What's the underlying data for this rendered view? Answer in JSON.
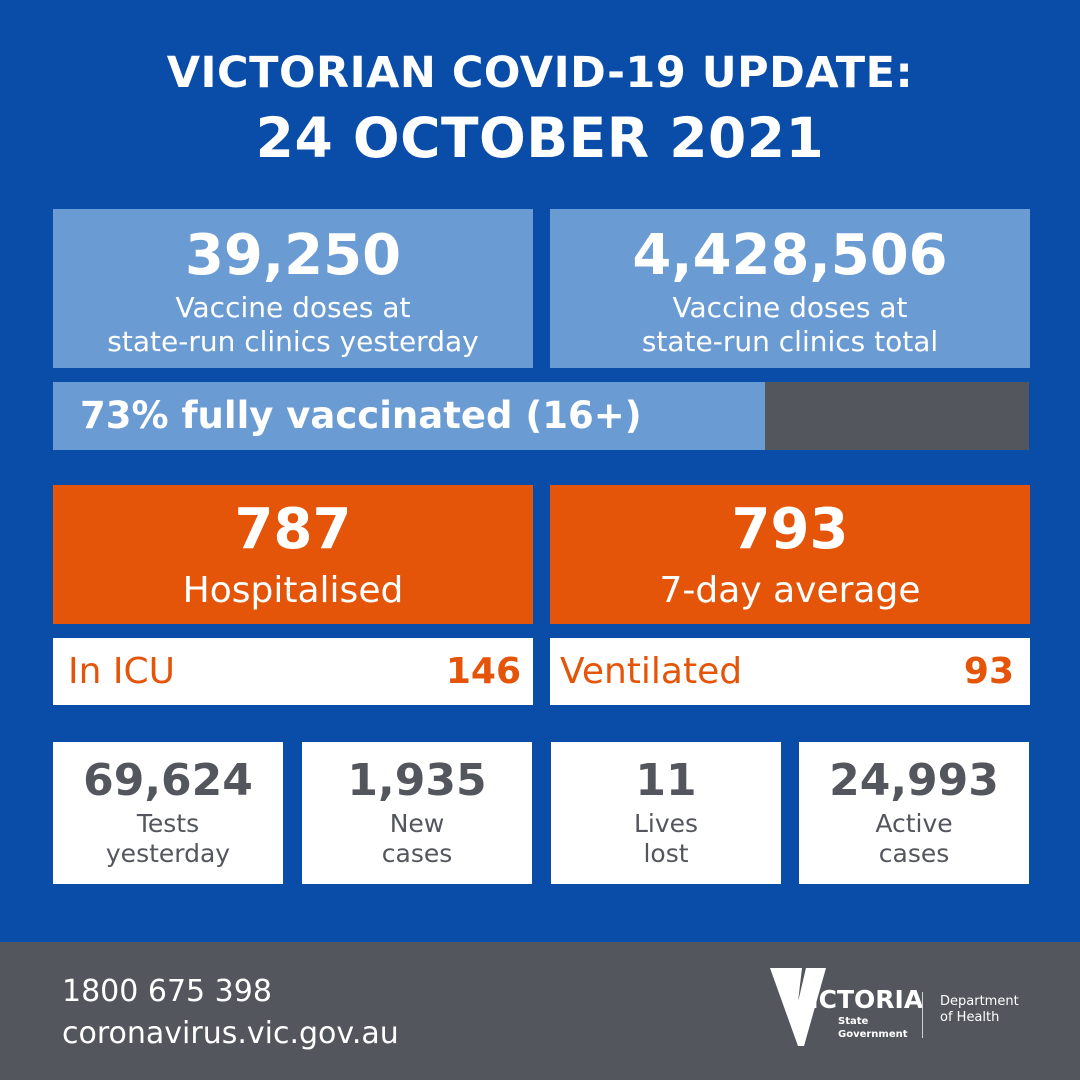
{
  "header": {
    "title": "VICTORIAN COVID-19 UPDATE:",
    "date": "24 OCTOBER 2021"
  },
  "vaccine": {
    "yesterday": {
      "value": "39,250",
      "label_line1": "Vaccine doses at",
      "label_line2": "state-run clinics yesterday"
    },
    "total": {
      "value": "4,428,506",
      "label_line1": "Vaccine doses at",
      "label_line2": "state-run clinics total"
    }
  },
  "progress": {
    "label": "73% fully vaccinated (16+)",
    "fraction": 0.73
  },
  "hospital": {
    "hospitalised": {
      "value": "787",
      "label": "Hospitalised"
    },
    "average": {
      "value": "793",
      "label": "7-day average"
    },
    "icu": {
      "label": "In ICU",
      "value": "146"
    },
    "ventilated": {
      "label": "Ventilated",
      "value": "93"
    }
  },
  "stats": [
    {
      "value": "69,624",
      "label_line1": "Tests",
      "label_line2": "yesterday"
    },
    {
      "value": "1,935",
      "label_line1": "New",
      "label_line2": "cases"
    },
    {
      "value": "11",
      "label_line1": "Lives",
      "label_line2": "lost"
    },
    {
      "value": "24,993",
      "label_line1": "Active",
      "label_line2": "cases"
    }
  ],
  "footer": {
    "phone": "1800 675 398",
    "website": "coronavirus.vic.gov.au",
    "logo_text": "VICTORIA",
    "logo_sub1": "State",
    "logo_sub2": "Government",
    "dept_line1": "Department",
    "dept_line2": "of Health"
  },
  "colors": {
    "background": "#0a4da8",
    "light_blue": "#6a9bd3",
    "orange": "#e4550a",
    "grey": "#53565c"
  }
}
